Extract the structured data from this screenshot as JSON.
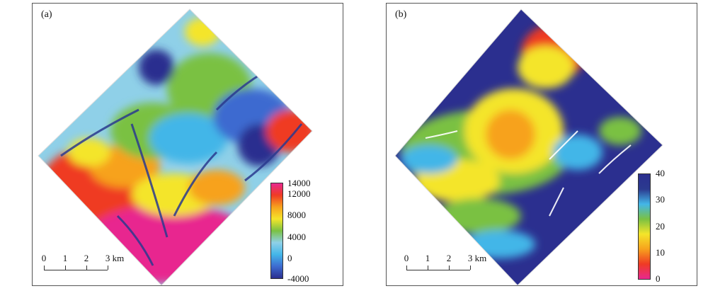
{
  "panels": [
    {
      "label": "(a)",
      "scalebar": {
        "ticks": [
          "0",
          "1",
          "2",
          "3 km"
        ]
      },
      "colorbar": {
        "ticks": [
          "14000",
          "12000",
          "8000",
          "4000",
          "0",
          "-4000"
        ],
        "tick_values": [
          14000,
          12000,
          8000,
          4000,
          0,
          -4000
        ],
        "range": [
          -4000,
          14000
        ],
        "colors": [
          "#2b2f8f",
          "#3d6bd0",
          "#43b6e8",
          "#8fd0e8",
          "#7ac143",
          "#f4e52a",
          "#f7a21d",
          "#ef3b24",
          "#e8288f"
        ]
      }
    },
    {
      "label": "(b)",
      "scalebar": {
        "ticks": [
          "0",
          "1",
          "2",
          "3 km"
        ]
      },
      "colorbar": {
        "ticks": [
          "40",
          "30",
          "20",
          "10",
          "0"
        ],
        "tick_values": [
          40,
          30,
          20,
          10,
          0
        ],
        "range": [
          0,
          40
        ],
        "colors": [
          "#e8288f",
          "#ef3b24",
          "#f7a21d",
          "#f4e52a",
          "#7ac143",
          "#43b6e8",
          "#2b3a8f",
          "#2b2f8f"
        ]
      }
    }
  ]
}
